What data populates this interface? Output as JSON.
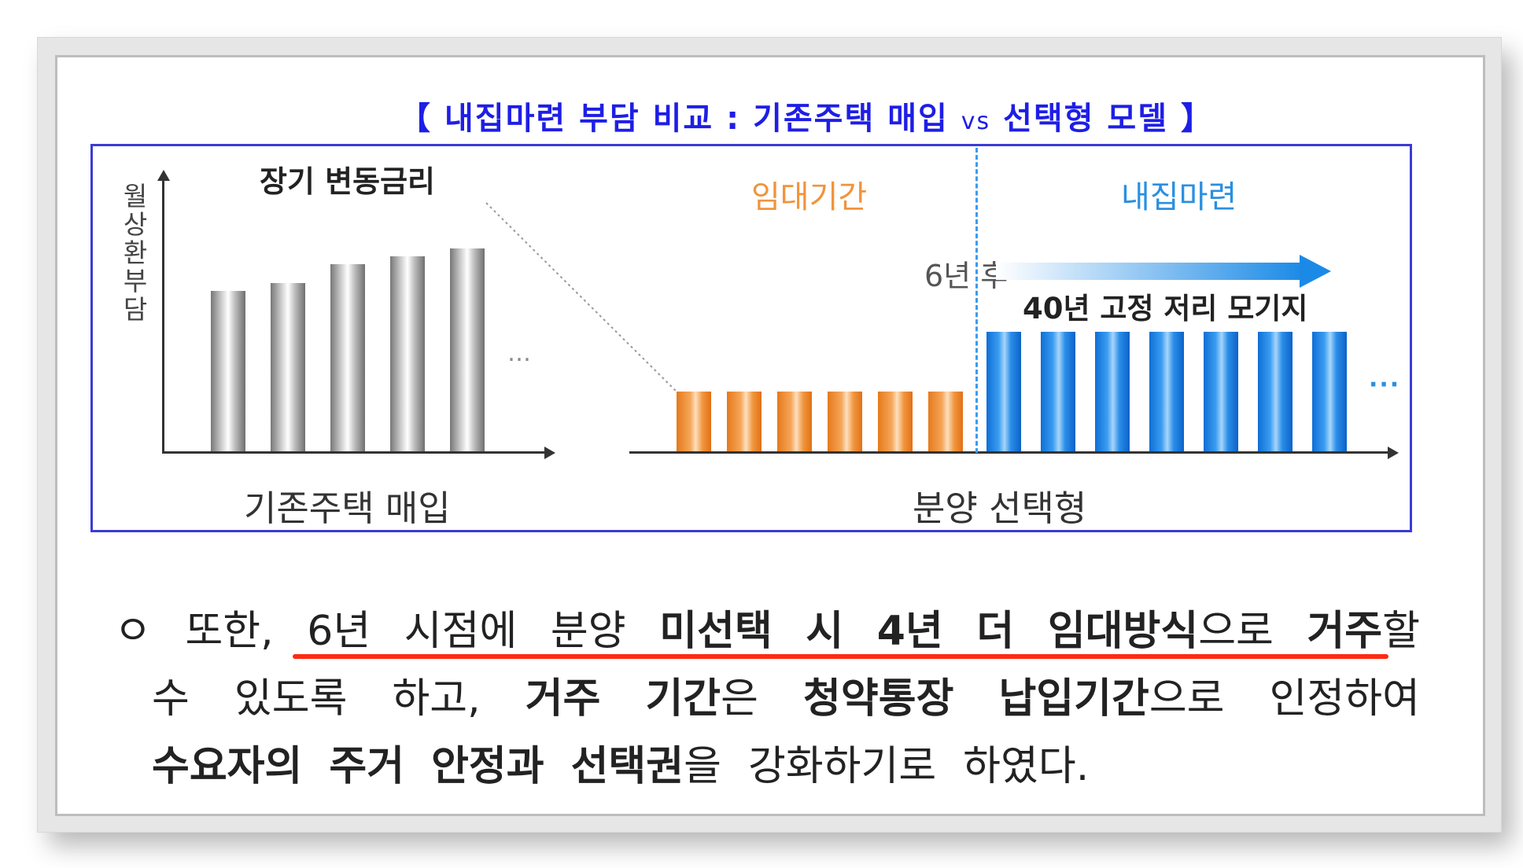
{
  "title": {
    "left": "【 내집마련 부담 비교 : 기존주택 매입",
    "vs": "vs",
    "right": "선택형 모델 】"
  },
  "diagram": {
    "y_axis_label": "월 상환부담",
    "left_group_title": "장기 변동금리",
    "left_caption": "기존주택 매입",
    "right_caption": "분양 선택형",
    "rent_period_label": "임대기간",
    "own_period_label": "내집마련",
    "after_label": "6년 후",
    "fixed_rate_label": "40년 고정 저리 모기지",
    "ellipsis": "…",
    "ellipsis_right": "···",
    "colors": {
      "frame_blue": "#3b3bd6",
      "rent_orange": "#f0943c",
      "own_blue": "#2a8fe0",
      "title_blue": "#1e1ee6",
      "underline_red": "#ff2a10"
    }
  },
  "chart_data": {
    "type": "bar",
    "groups": [
      {
        "name": "기존주택 매입",
        "series_label": "장기 변동금리",
        "values": [
          60,
          63,
          70,
          73,
          76
        ],
        "trend": "increasing"
      },
      {
        "name": "분양 선택형",
        "segments": [
          {
            "label": "임대기간",
            "count": 6,
            "relative_level": "low",
            "color": "#f0943c"
          },
          {
            "label": "내집마련",
            "count": 7,
            "relative_level": "medium",
            "color": "#2a8fe0"
          }
        ]
      }
    ],
    "ylabel": "월 상환부담"
  },
  "body": {
    "bullet": "ㅇ",
    "line1": [
      "또한,",
      "6년",
      "시점에",
      "분양",
      "미선택",
      "시",
      "4년",
      "더",
      "임대방식",
      "으로",
      "거주",
      "할"
    ],
    "line2": [
      "수",
      "있도록",
      "하고,",
      "거주",
      "기간",
      "은",
      "청약통장",
      "납입기간",
      "으로",
      "인정하여"
    ],
    "line3": [
      "수요자의",
      "주거",
      "안정과",
      "선택권",
      "을",
      "강화하기로",
      "하였다."
    ]
  }
}
